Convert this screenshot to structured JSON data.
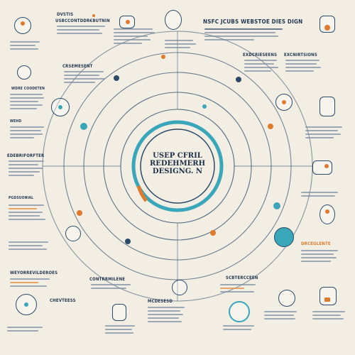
{
  "center": {
    "line1": "USEP CFRIL",
    "line2": "REDEHMERH",
    "line3": "DESIGNG. N"
  },
  "headers": {
    "top_left_small": "DVSTIS",
    "top_mid": "USBCCONTDDR€BUTNIN",
    "top_right": "NSFC JCUBS WEBSTOE DIES DIGN",
    "left_mid": "CRSEMESENT",
    "left_row": "WDRE COODETEN",
    "left_label": "WEHD",
    "left_label2": "EDEBRIFORFTER",
    "left_label3": "PGDSUONIAL",
    "right_col_a": "EXDCRIESEENS",
    "right_col_b": "EXCNIRTSIONS",
    "right_mid": "DRCEGLENTE",
    "bottom_left": "WEYORREVILDEROES",
    "bottom_a": "CONTRRMILENE",
    "bottom_b": "CHEVTEESS",
    "bottom_c": "MCDESESD",
    "bottom_right": "SCBTERCCEEN"
  },
  "colors": {
    "navy": "#1f3550",
    "teal": "#3aa6b9",
    "orange": "#e07a2c",
    "background": "#f3eee4"
  },
  "icons": [
    "person-icon",
    "pen-icon",
    "document-icon",
    "head-icon",
    "gear-icon",
    "phone-icon",
    "chat-icon",
    "hand-icon",
    "lamp-icon",
    "laptop-icon",
    "cube-icon",
    "globe-icon",
    "target-icon",
    "chart-icon",
    "eye-icon",
    "lightbulb-icon",
    "user-icon",
    "folder-icon",
    "clipboard-icon",
    "bell-icon"
  ]
}
